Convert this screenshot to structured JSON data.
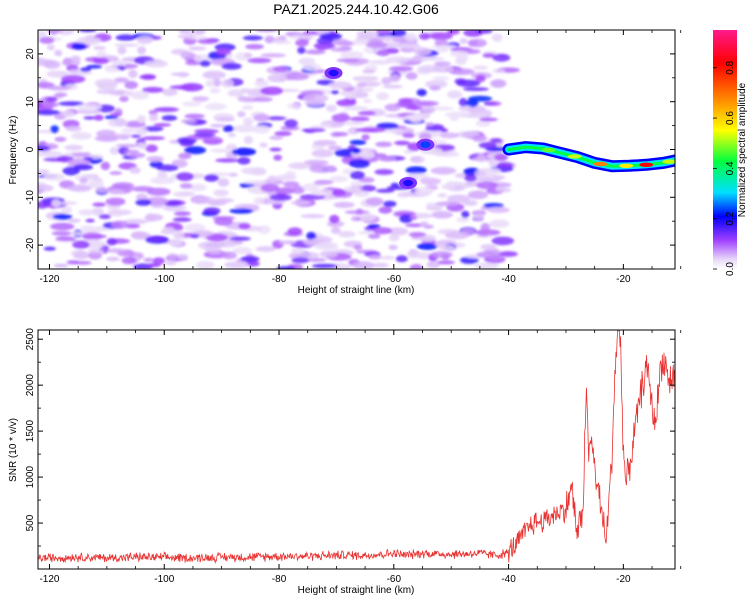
{
  "chart_data": [
    {
      "type": "heatmap",
      "title": "PAZ1.2025.244.10.42.G06",
      "xlabel": "Height of straight line (km)",
      "ylabel": "Frequency (Hz)",
      "xlim": [
        -122,
        -11
      ],
      "ylim": [
        -25,
        25
      ],
      "xticks": [
        -120,
        -100,
        -80,
        -60,
        -40,
        -20
      ],
      "xtick_labels": [
        "-120",
        "-100",
        "-80",
        "-60",
        "-40",
        "-20"
      ],
      "yticks": [
        -20,
        -10,
        0,
        10,
        20
      ],
      "ytick_labels": [
        "-20",
        "-10",
        "0",
        "10",
        "20"
      ],
      "noise_region_x": [
        -122,
        -40
      ],
      "signal_track": {
        "x": [
          -40,
          -37,
          -34,
          -31,
          -28,
          -25,
          -22,
          -19,
          -16,
          -13,
          -11
        ],
        "frequency_hz": [
          0,
          0.5,
          0.2,
          -0.7,
          -1.6,
          -2.8,
          -3.5,
          -3.4,
          -3.2,
          -2.8,
          -2.3
        ]
      },
      "isolated_features": [
        {
          "x": -70.5,
          "frequency_hz": 16,
          "amplitude": 0.2
        },
        {
          "x": -54.5,
          "frequency_hz": 1,
          "amplitude": 0.25
        },
        {
          "x": -57.5,
          "frequency_hz": -7,
          "amplitude": 0.2
        }
      ],
      "colorbar": {
        "label": "Normalized spectral amplitude",
        "range": [
          0.0,
          0.95
        ],
        "ticks": [
          0.0,
          0.2,
          0.4,
          0.6,
          0.8
        ],
        "tick_labels": [
          "0.0",
          "0.2",
          "0.4",
          "0.6",
          "0.8"
        ]
      }
    },
    {
      "type": "line",
      "xlabel": "Height of straight line (km)",
      "ylabel": "SNR (10 * v/v)",
      "xlim": [
        -122,
        -11
      ],
      "ylim": [
        0,
        2600
      ],
      "xticks": [
        -120,
        -100,
        -80,
        -60,
        -40,
        -20
      ],
      "xtick_labels": [
        "-120",
        "-100",
        "-80",
        "-60",
        "-40",
        "-20"
      ],
      "yticks": [
        500,
        1000,
        1500,
        2000,
        2500
      ],
      "ytick_labels": [
        "500",
        "1000",
        "1500",
        "2000",
        "2500"
      ],
      "series": [
        {
          "name": "SNR",
          "color": "#e8312f",
          "x": [
            -122,
            -115,
            -110,
            -105,
            -100,
            -95,
            -90,
            -85,
            -80,
            -75,
            -70,
            -65,
            -62,
            -60,
            -58,
            -55,
            -50,
            -45,
            -42,
            -40,
            -38,
            -36,
            -34,
            -32,
            -30,
            -29,
            -28,
            -27,
            -26.5,
            -26,
            -25.5,
            -25,
            -24,
            -23,
            -22,
            -21.5,
            -21,
            -20.5,
            -20,
            -19.5,
            -19,
            -18,
            -17,
            -16,
            -15.5,
            -15,
            -14.5,
            -14,
            -13.5,
            -13,
            -12,
            -11
          ],
          "y": [
            120,
            130,
            120,
            130,
            125,
            120,
            130,
            130,
            140,
            140,
            150,
            150,
            160,
            170,
            150,
            170,
            160,
            170,
            150,
            180,
            320,
            500,
            520,
            600,
            650,
            900,
            350,
            700,
            1950,
            1250,
            1400,
            1100,
            700,
            300,
            1200,
            2100,
            2600,
            2500,
            1300,
            900,
            1100,
            1500,
            1900,
            2200,
            2050,
            1800,
            1550,
            1850,
            2200,
            2300,
            2050,
            2100
          ]
        }
      ]
    }
  ]
}
